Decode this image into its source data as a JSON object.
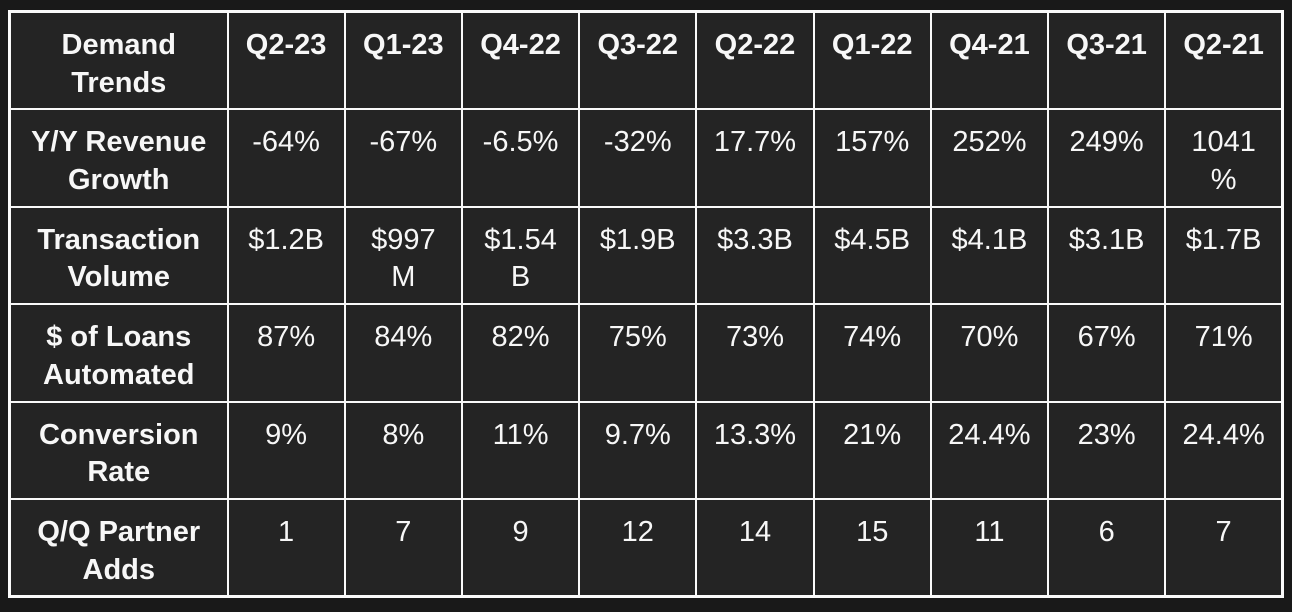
{
  "table": {
    "title": "Demand Trends",
    "columns": [
      "Demand\nTrends",
      "Q2-23",
      "Q1-23",
      "Q4-22",
      "Q3-22",
      "Q2-22",
      "Q1-22",
      "Q4-21",
      "Q3-21",
      "Q2-21"
    ],
    "rows": [
      {
        "label": "Y/Y Revenue\nGrowth",
        "values": [
          "-64%",
          "-67%",
          "-6.5%",
          "-32%",
          "17.7%",
          "157%",
          "252%",
          "249%",
          "1041\n%"
        ]
      },
      {
        "label": "Transaction\nVolume",
        "values": [
          "$1.2B",
          "$997\nM",
          "$1.54\nB",
          "$1.9B",
          "$3.3B",
          "$4.5B",
          "$4.1B",
          "$3.1B",
          "$1.7B"
        ]
      },
      {
        "label": "$ of Loans\nAutomated",
        "values": [
          "87%",
          "84%",
          "82%",
          "75%",
          "73%",
          "74%",
          "70%",
          "67%",
          "71%"
        ]
      },
      {
        "label": "Conversion\nRate",
        "values": [
          "9%",
          "8%",
          "11%",
          "9.7%",
          "13.3%",
          "21%",
          "24.4%",
          "23%",
          "24.4%"
        ]
      },
      {
        "label": "Q/Q Partner\nAdds",
        "values": [
          "1",
          "7",
          "9",
          "12",
          "14",
          "15",
          "11",
          "6",
          "7"
        ]
      }
    ],
    "colors": {
      "page_background": "#191919",
      "cell_background": "#242424",
      "border": "#fafafa",
      "text": "#f7f7f7"
    }
  },
  "chart_data": {
    "type": "table",
    "title": "Demand Trends",
    "categories": [
      "Q2-23",
      "Q1-23",
      "Q4-22",
      "Q3-22",
      "Q2-22",
      "Q1-22",
      "Q4-21",
      "Q3-21",
      "Q2-21"
    ],
    "series": [
      {
        "name": "Y/Y Revenue Growth (%)",
        "values": [
          -64,
          -67,
          -6.5,
          -32,
          17.7,
          157,
          252,
          249,
          1041
        ]
      },
      {
        "name": "Transaction Volume (USD)",
        "values": [
          "$1.2B",
          "$997M",
          "$1.54B",
          "$1.9B",
          "$3.3B",
          "$4.5B",
          "$4.1B",
          "$3.1B",
          "$1.7B"
        ]
      },
      {
        "name": "$ of Loans Automated (%)",
        "values": [
          87,
          84,
          82,
          75,
          73,
          74,
          70,
          67,
          71
        ]
      },
      {
        "name": "Conversion Rate (%)",
        "values": [
          9,
          8,
          11,
          9.7,
          13.3,
          21,
          24.4,
          23,
          24.4
        ]
      },
      {
        "name": "Q/Q Partner Adds",
        "values": [
          1,
          7,
          9,
          12,
          14,
          15,
          11,
          6,
          7
        ]
      }
    ],
    "layout": {
      "grid": "on",
      "legend": "none",
      "theme": "dark"
    }
  }
}
